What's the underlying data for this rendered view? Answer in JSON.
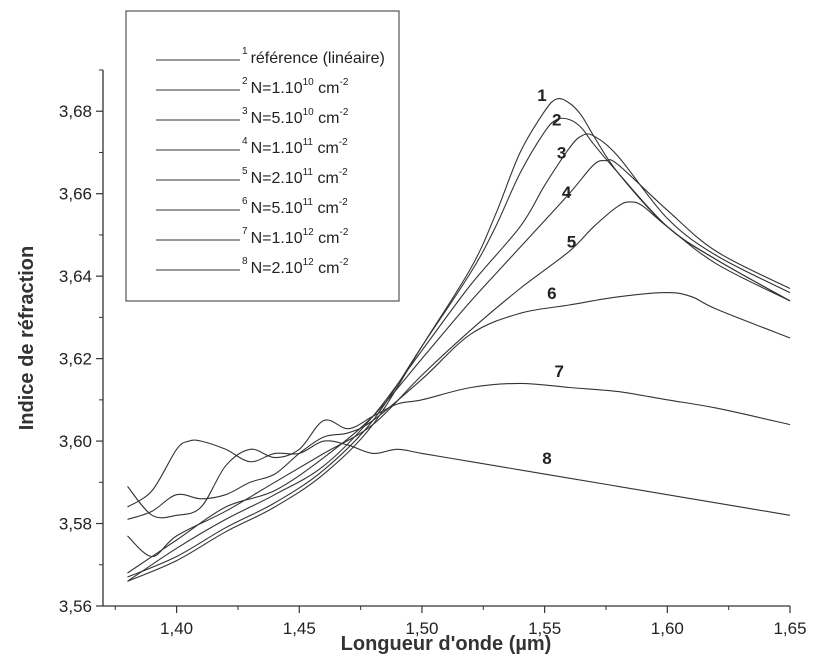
{
  "chart_data": {
    "type": "line",
    "xlabel": "Longueur d'onde (µm)",
    "ylabel": "Indice de réfraction",
    "xlim": [
      1.37,
      1.65
    ],
    "ylim": [
      3.56,
      3.69
    ],
    "xticks": [
      1.4,
      1.45,
      1.5,
      1.55,
      1.6,
      1.65
    ],
    "xtick_labels": [
      "1,40",
      "1,45",
      "1,50",
      "1,55",
      "1,60",
      "1,65"
    ],
    "yticks": [
      3.56,
      3.58,
      3.6,
      3.62,
      3.64,
      3.66,
      3.68
    ],
    "ytick_labels": [
      "3,56",
      "3,58",
      "3,60",
      "3,62",
      "3,64",
      "3,66",
      "3,68"
    ],
    "legend_position": "top-left",
    "line_color": "#333333",
    "series": [
      {
        "num": "1",
        "name_pre": "référence (linéaire)",
        "name_sup": "",
        "name_post": "",
        "x": [
          1.38,
          1.4,
          1.42,
          1.44,
          1.46,
          1.48,
          1.5,
          1.52,
          1.53,
          1.54,
          1.55,
          1.555,
          1.56,
          1.565,
          1.57,
          1.58,
          1.6,
          1.62,
          1.65
        ],
        "y": [
          3.566,
          3.571,
          3.578,
          3.584,
          3.592,
          3.604,
          3.623,
          3.642,
          3.655,
          3.67,
          3.68,
          3.683,
          3.682,
          3.679,
          3.674,
          3.665,
          3.652,
          3.644,
          3.634
        ]
      },
      {
        "num": "2",
        "name_pre": "N=1.10",
        "name_sup": "10",
        "name_post": " cm",
        "x": [
          1.38,
          1.4,
          1.42,
          1.44,
          1.46,
          1.48,
          1.5,
          1.52,
          1.53,
          1.54,
          1.55,
          1.555,
          1.56,
          1.565,
          1.57,
          1.58,
          1.6,
          1.62,
          1.65
        ],
        "y": [
          3.567,
          3.572,
          3.579,
          3.585,
          3.593,
          3.605,
          3.623,
          3.641,
          3.652,
          3.665,
          3.675,
          3.678,
          3.678,
          3.676,
          3.672,
          3.665,
          3.652,
          3.644,
          3.634
        ]
      },
      {
        "num": "3",
        "name_pre": "N=5.10",
        "name_sup": "10",
        "name_post": " cm",
        "x": [
          1.38,
          1.4,
          1.42,
          1.44,
          1.46,
          1.48,
          1.5,
          1.52,
          1.54,
          1.55,
          1.56,
          1.565,
          1.57,
          1.58,
          1.6,
          1.62,
          1.65
        ],
        "y": [
          3.566,
          3.574,
          3.581,
          3.587,
          3.594,
          3.606,
          3.622,
          3.638,
          3.652,
          3.662,
          3.671,
          3.674,
          3.674,
          3.669,
          3.654,
          3.645,
          3.636
        ]
      },
      {
        "num": "4",
        "name_pre": "N=1.10",
        "name_sup": "11",
        "name_post": " cm",
        "x": [
          1.38,
          1.4,
          1.42,
          1.44,
          1.46,
          1.48,
          1.5,
          1.52,
          1.54,
          1.56,
          1.57,
          1.575,
          1.58,
          1.6,
          1.62,
          1.65
        ],
        "y": [
          3.568,
          3.576,
          3.584,
          3.588,
          3.596,
          3.606,
          3.62,
          3.634,
          3.647,
          3.66,
          3.667,
          3.668,
          3.667,
          3.656,
          3.646,
          3.637
        ]
      },
      {
        "num": "5",
        "name_pre": "N=2.10",
        "name_sup": "11",
        "name_post": " cm",
        "x": [
          1.38,
          1.39,
          1.4,
          1.42,
          1.44,
          1.46,
          1.48,
          1.5,
          1.52,
          1.54,
          1.56,
          1.57,
          1.58,
          1.585,
          1.59,
          1.6,
          1.62,
          1.65
        ],
        "y": [
          3.577,
          3.572,
          3.577,
          3.583,
          3.59,
          3.597,
          3.604,
          3.616,
          3.627,
          3.637,
          3.646,
          3.652,
          3.657,
          3.658,
          3.657,
          3.652,
          3.643,
          3.634
        ]
      },
      {
        "num": "6",
        "name_pre": "N=5.10",
        "name_sup": "11",
        "name_post": " cm",
        "x": [
          1.38,
          1.39,
          1.4,
          1.41,
          1.42,
          1.43,
          1.44,
          1.45,
          1.46,
          1.47,
          1.48,
          1.5,
          1.52,
          1.54,
          1.56,
          1.58,
          1.6,
          1.61,
          1.62,
          1.65
        ],
        "y": [
          3.581,
          3.583,
          3.587,
          3.586,
          3.587,
          3.59,
          3.592,
          3.597,
          3.601,
          3.602,
          3.605,
          3.615,
          3.626,
          3.631,
          3.633,
          3.635,
          3.636,
          3.635,
          3.632,
          3.625
        ]
      },
      {
        "num": "7",
        "name_pre": "N=1.10",
        "name_sup": "12",
        "name_post": " cm",
        "x": [
          1.38,
          1.39,
          1.4,
          1.41,
          1.42,
          1.43,
          1.44,
          1.45,
          1.46,
          1.47,
          1.48,
          1.49,
          1.5,
          1.52,
          1.54,
          1.56,
          1.58,
          1.6,
          1.62,
          1.65
        ],
        "y": [
          3.589,
          3.582,
          3.582,
          3.584,
          3.594,
          3.598,
          3.596,
          3.598,
          3.605,
          3.603,
          3.606,
          3.609,
          3.61,
          3.613,
          3.614,
          3.613,
          3.612,
          3.61,
          3.608,
          3.604
        ]
      },
      {
        "num": "8",
        "name_pre": "N=2.10",
        "name_sup": "12",
        "name_post": " cm",
        "x": [
          1.38,
          1.39,
          1.4,
          1.405,
          1.41,
          1.42,
          1.43,
          1.44,
          1.45,
          1.46,
          1.47,
          1.48,
          1.49,
          1.5,
          1.52,
          1.54,
          1.56,
          1.58,
          1.6,
          1.62,
          1.65
        ],
        "y": [
          3.584,
          3.588,
          3.598,
          3.6,
          3.6,
          3.598,
          3.595,
          3.597,
          3.597,
          3.6,
          3.599,
          3.597,
          3.598,
          3.597,
          3.595,
          3.593,
          3.591,
          3.589,
          3.587,
          3.585,
          3.582
        ]
      }
    ],
    "curve_labels": [
      {
        "text": "1",
        "x": 1.547,
        "y": 3.6825
      },
      {
        "text": "2",
        "x": 1.553,
        "y": 3.6765
      },
      {
        "text": "3",
        "x": 1.555,
        "y": 3.6685
      },
      {
        "text": "4",
        "x": 1.557,
        "y": 3.659
      },
      {
        "text": "5",
        "x": 1.559,
        "y": 3.647
      },
      {
        "text": "6",
        "x": 1.551,
        "y": 3.6345
      },
      {
        "text": "7",
        "x": 1.554,
        "y": 3.6155
      },
      {
        "text": "8",
        "x": 1.549,
        "y": 3.5945
      }
    ]
  }
}
